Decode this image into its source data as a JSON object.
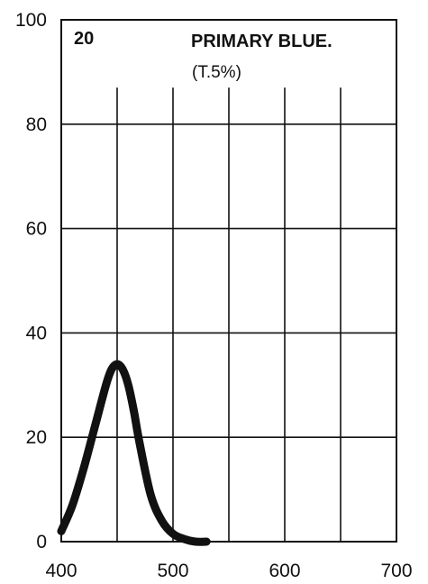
{
  "chart_data": {
    "type": "line",
    "panel_number": "20",
    "title": "PRIMARY BLUE.",
    "subtitle": "(T.5%)",
    "xlabel": "",
    "ylabel": "",
    "xlim": [
      400,
      700
    ],
    "ylim": [
      0,
      100
    ],
    "x_ticks": [
      400,
      500,
      600,
      700
    ],
    "y_ticks": [
      0,
      20,
      40,
      60,
      80,
      100
    ],
    "grid": true,
    "series": [
      {
        "x": [
          400,
          410,
          420,
          430,
          440,
          445,
          450,
          455,
          460,
          465,
          470,
          480,
          490,
          500,
          510,
          520,
          530
        ],
        "y": [
          2,
          7,
          14,
          22,
          30,
          33,
          34,
          33,
          30,
          25,
          19,
          9,
          4,
          1.5,
          0.5,
          0,
          0
        ]
      }
    ],
    "line_color": "#111111"
  }
}
